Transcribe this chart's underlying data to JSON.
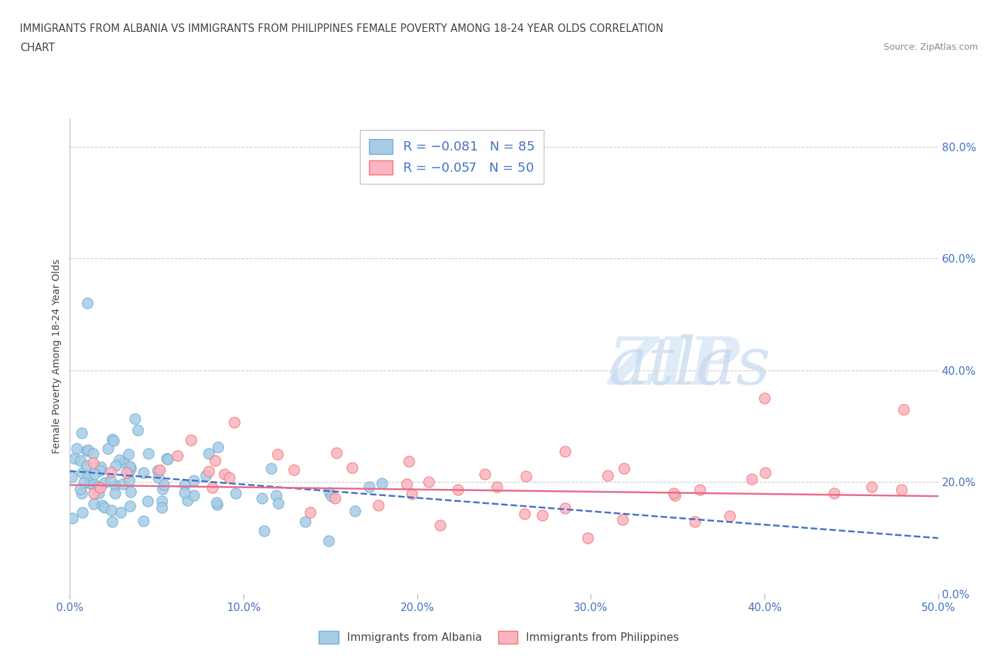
{
  "title_line1": "IMMIGRANTS FROM ALBANIA VS IMMIGRANTS FROM PHILIPPINES FEMALE POVERTY AMONG 18-24 YEAR OLDS CORRELATION",
  "title_line2": "CHART",
  "source": "Source: ZipAtlas.com",
  "ylabel": "Female Poverty Among 18-24 Year Olds",
  "xlim": [
    0.0,
    0.5
  ],
  "ylim": [
    0.0,
    0.85
  ],
  "xticks": [
    0.0,
    0.1,
    0.2,
    0.3,
    0.4,
    0.5
  ],
  "yticks": [
    0.0,
    0.2,
    0.4,
    0.6,
    0.8
  ],
  "xticklabels": [
    "0.0%",
    "10.0%",
    "20.0%",
    "30.0%",
    "40.0%",
    "50.0%"
  ],
  "yticklabels": [
    "0.0%",
    "20.0%",
    "40.0%",
    "60.0%",
    "80.0%"
  ],
  "albania_color": "#a8cce4",
  "albania_edge": "#6baed6",
  "philippines_color": "#fbb4c1",
  "philippines_edge": "#f4726e",
  "albania_R": -0.081,
  "albania_N": 85,
  "philippines_R": -0.057,
  "philippines_N": 50,
  "background_color": "#ffffff",
  "legend_label_albania": "Immigrants from Albania",
  "legend_label_philippines": "Immigrants from Philippines",
  "albania_trend_color": "#4472c4",
  "albania_trend_style": "--",
  "philippines_trend_color": "#e86a8a",
  "philippines_trend_style": "-"
}
